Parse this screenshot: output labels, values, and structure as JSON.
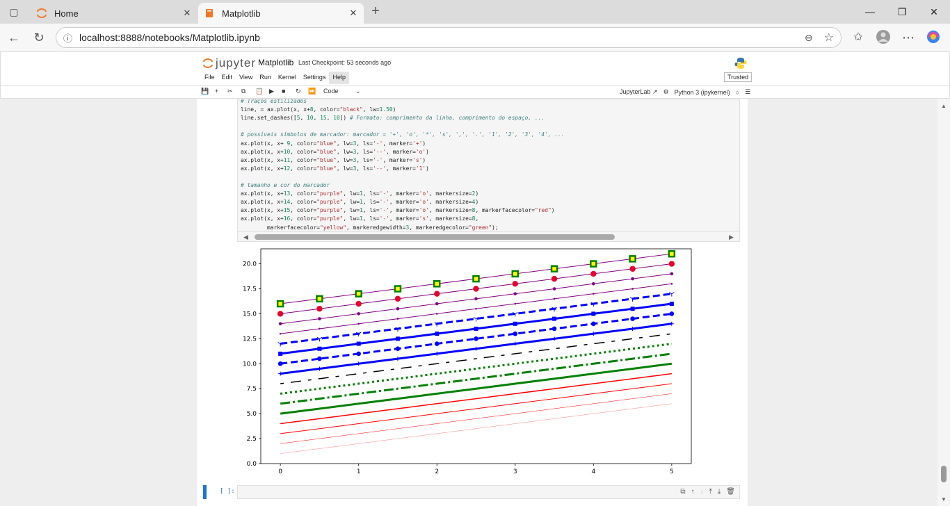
{
  "browser": {
    "tabs": [
      {
        "label": "Home",
        "icon": "jupyter-icon",
        "active": false
      },
      {
        "label": "Matplotlib",
        "icon": "notebook-icon",
        "active": true
      }
    ],
    "url": "localhost:8888/notebooks/Matplotlib.ipynb"
  },
  "jupyter": {
    "logo_text": "jupyter",
    "notebook_name": "Matplotlib",
    "checkpoint": "Last Checkpoint: 53 seconds ago",
    "menu": [
      "File",
      "Edit",
      "View",
      "Run",
      "Kernel",
      "Settings",
      "Help"
    ],
    "trusted": "Trusted",
    "cell_type": "Code",
    "jupyterlab_link": "JupyterLab",
    "kernel_name": "Python 3 (ipykernel)"
  },
  "code_lines": [
    "# Traços estilizados",
    "line, = ax.plot(x, x+8, color=\"black\", lw=1.50)",
    "line.set_dashes([5, 10, 15, 10]) # Formato: comprimento da linha, comprimento do espaço, ...",
    "",
    "# possíveis símbolos de marcador: marcador = '+', 'o', '*', 's', ',', '.', '1', '2', '3', '4', ...",
    "ax.plot(x, x+ 9, color=\"blue\", lw=3, ls='-', marker='+')",
    "ax.plot(x, x+10, color=\"blue\", lw=3, ls='--', marker='o')",
    "ax.plot(x, x+11, color=\"blue\", lw=3, ls='-', marker='s')",
    "ax.plot(x, x+12, color=\"blue\", lw=3, ls='--', marker='1')",
    "",
    "# tamanho e cor do marcador",
    "ax.plot(x, x+13, color=\"purple\", lw=1, ls='-', marker='o', markersize=2)",
    "ax.plot(x, x+14, color=\"purple\", lw=1, ls='-', marker='o', markersize=4)",
    "ax.plot(x, x+15, color=\"purple\", lw=1, ls='-', marker='o', markersize=8, markerfacecolor=\"red\")",
    "ax.plot(x, x+16, color=\"purple\", lw=1, ls='-', marker='s', markersize=8,",
    "        markerfacecolor=\"yellow\", markeredgewidth=3, markeredgecolor=\"green\");"
  ],
  "empty_cell_prompt": "[ ]:",
  "chart_data": {
    "type": "line",
    "xlim": [
      0,
      5
    ],
    "ylim": [
      0,
      21.5
    ],
    "x": [
      0,
      0.5,
      1,
      1.5,
      2,
      2.5,
      3,
      3.5,
      4,
      4.5,
      5
    ],
    "xticks": [
      "0",
      "1",
      "2",
      "3",
      "4",
      "5"
    ],
    "yticks": [
      "0.0",
      "2.5",
      "5.0",
      "7.5",
      "10.0",
      "12.5",
      "15.0",
      "17.5",
      "20.0"
    ],
    "series": [
      {
        "offset": 1,
        "color": "#ff0000",
        "lw": 0.25,
        "style": "solid"
      },
      {
        "offset": 2,
        "color": "#ff0000",
        "lw": 0.5,
        "style": "solid"
      },
      {
        "offset": 3,
        "color": "#ff0000",
        "lw": 1,
        "style": "solid"
      },
      {
        "offset": 4,
        "color": "#ff0000",
        "lw": 1.5,
        "style": "solid"
      },
      {
        "offset": 5,
        "color": "#008000",
        "lw": 3,
        "style": "solid"
      },
      {
        "offset": 6,
        "color": "#008000",
        "lw": 3,
        "style": "dashdot"
      },
      {
        "offset": 7,
        "color": "#008000",
        "lw": 3,
        "style": "dotted"
      },
      {
        "offset": 8,
        "color": "#000000",
        "lw": 1.5,
        "style": "custom"
      },
      {
        "offset": 9,
        "color": "#0000ff",
        "lw": 3,
        "style": "solid",
        "marker": "+"
      },
      {
        "offset": 10,
        "color": "#0000ff",
        "lw": 3,
        "style": "dashed",
        "marker": "o"
      },
      {
        "offset": 11,
        "color": "#0000ff",
        "lw": 3,
        "style": "solid",
        "marker": "s"
      },
      {
        "offset": 12,
        "color": "#0000ff",
        "lw": 3,
        "style": "dashed",
        "marker": "1"
      },
      {
        "offset": 13,
        "color": "#800080",
        "lw": 1,
        "style": "solid",
        "marker": "o",
        "markersize": 2
      },
      {
        "offset": 14,
        "color": "#800080",
        "lw": 1,
        "style": "solid",
        "marker": "o",
        "markersize": 4
      },
      {
        "offset": 15,
        "color": "#800080",
        "lw": 1,
        "style": "solid",
        "marker": "o",
        "markersize": 8,
        "markerfacecolor": "#e8002a"
      },
      {
        "offset": 16,
        "color": "#800080",
        "lw": 1,
        "style": "solid",
        "marker": "s",
        "markersize": 8,
        "markerfacecolor": "#ffff00",
        "markeredgecolor": "#008000"
      }
    ]
  }
}
